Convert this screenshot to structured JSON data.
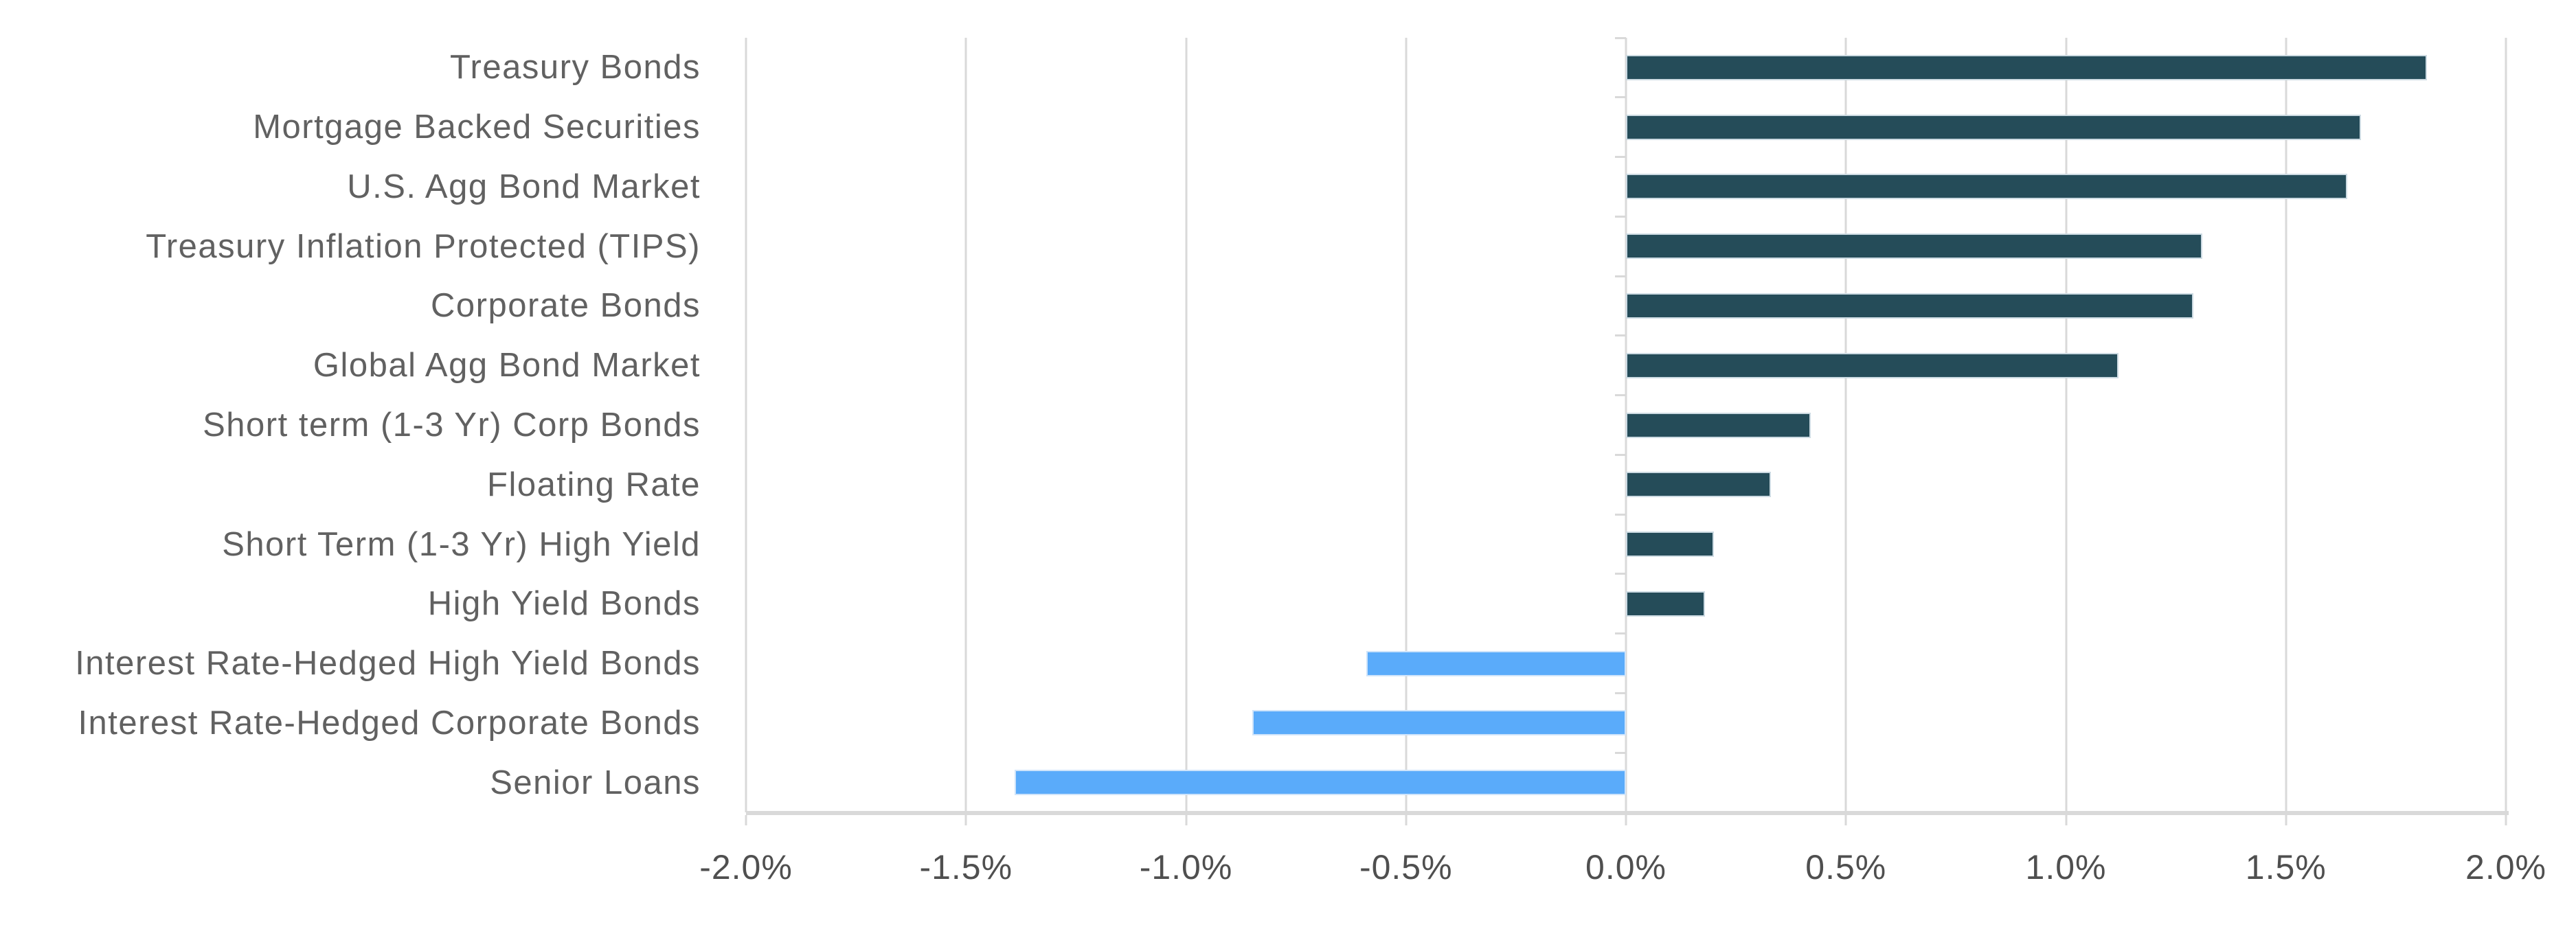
{
  "chart_data": {
    "type": "bar",
    "orientation": "horizontal",
    "title": "",
    "xlabel": "",
    "ylabel": "",
    "categories": [
      "Treasury Bonds",
      "Mortgage Backed Securities",
      "U.S. Agg Bond Market",
      "Treasury Inflation Protected (TIPS)",
      "Corporate Bonds",
      "Global Agg Bond Market",
      "Short term (1-3 Yr) Corp Bonds",
      "Floating Rate",
      "Short Term (1-3 Yr) High Yield",
      "High Yield Bonds",
      "Interest Rate-Hedged High Yield Bonds",
      "Interest Rate-Hedged Corporate Bonds",
      "Senior Loans"
    ],
    "values": [
      1.82,
      1.67,
      1.64,
      1.31,
      1.29,
      1.12,
      0.42,
      0.33,
      0.2,
      0.18,
      -0.59,
      -0.85,
      -1.39
    ],
    "value_unit": "percent",
    "xlim": [
      -2.0,
      2.0
    ],
    "x_tick_values": [
      -2.0,
      -1.5,
      -1.0,
      -0.5,
      0.0,
      0.5,
      1.0,
      1.5,
      2.0
    ],
    "x_tick_labels": [
      "-2.0%",
      "-1.5%",
      "-1.0%",
      "-0.5%",
      "0.0%",
      "0.5%",
      "1.0%",
      "1.5%",
      "2.0%"
    ],
    "grid": "vertical-on",
    "legend": "none",
    "colors": {
      "positive_bar": "#254C59",
      "negative_bar": "#5AABFA",
      "gridline": "#D9D9D9",
      "axis_line": "#D9D9D9",
      "category_label_text": "#616161",
      "tick_label_text": "#4F4F4F",
      "background": "#FFFFFF"
    }
  }
}
